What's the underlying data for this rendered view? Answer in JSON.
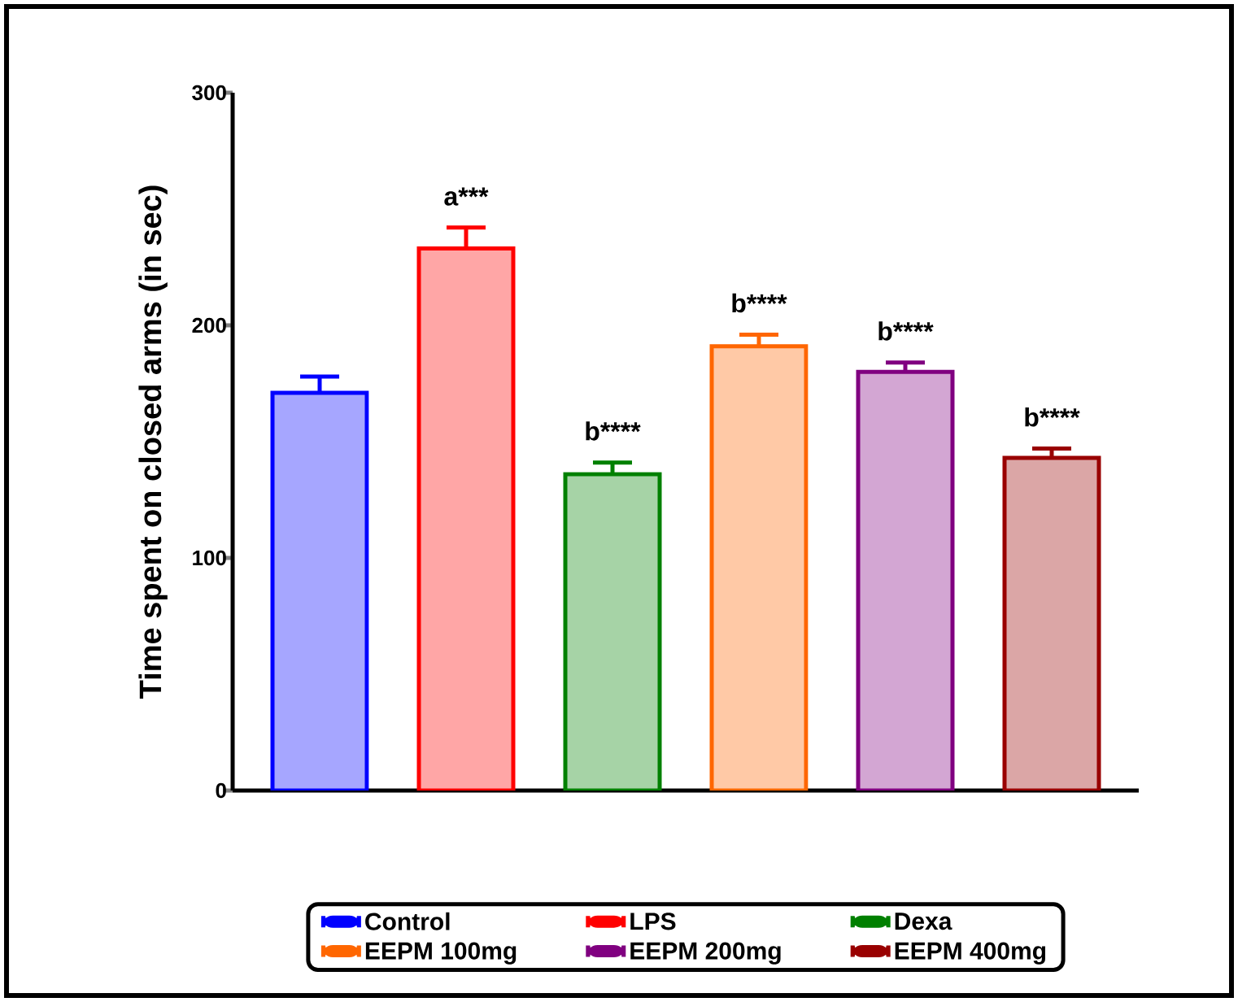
{
  "chart_data": {
    "type": "bar",
    "ylabel": "Time spent on closed arms (in sec)",
    "categories": [
      null
    ],
    "ylim": [
      0,
      300
    ],
    "yticks": [
      0,
      100,
      200,
      300
    ],
    "legend": "bottom",
    "grid": false,
    "series": [
      {
        "name": "Control",
        "color": "#0000ff",
        "values": [
          171
        ],
        "errors": [
          7
        ]
      },
      {
        "name": "LPS",
        "color": "#ff0000",
        "values": [
          233
        ],
        "errors": [
          9
        ],
        "value_labels": [
          "a***"
        ]
      },
      {
        "name": "Dexa",
        "color": "#008000",
        "values": [
          136
        ],
        "errors": [
          5
        ],
        "value_labels": [
          "b****"
        ]
      },
      {
        "name": "EEPM 100mg",
        "color": "#ff6600",
        "values": [
          191
        ],
        "errors": [
          5
        ],
        "value_labels": [
          "b****"
        ]
      },
      {
        "name": "EEPM 200mg",
        "color": "#800080",
        "values": [
          180
        ],
        "errors": [
          4
        ],
        "value_labels": [
          "b****"
        ]
      },
      {
        "name": "EEPM 400mg",
        "color": "#990000",
        "values": [
          143
        ],
        "errors": [
          4
        ],
        "value_labels": [
          "b****"
        ]
      }
    ]
  }
}
